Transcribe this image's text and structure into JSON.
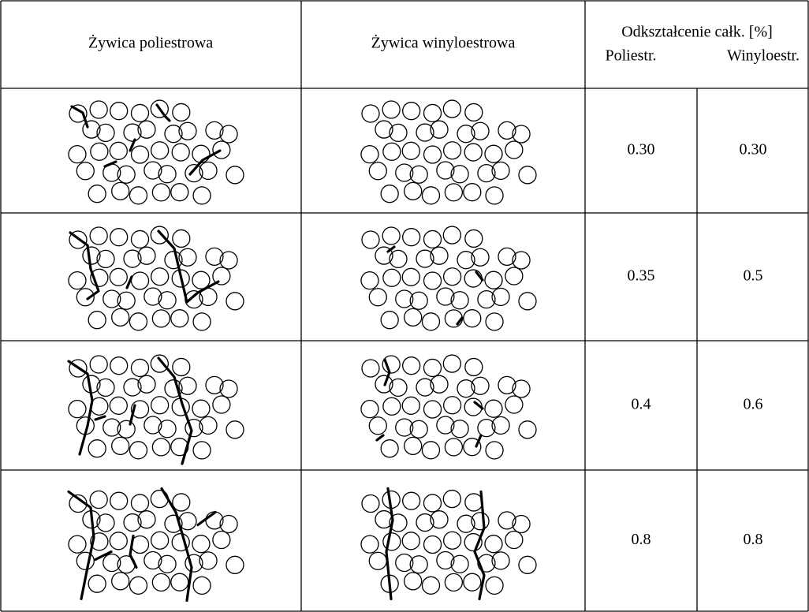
{
  "table": {
    "headers": [
      "Żywica poliestrowa",
      "Żywica winyloestrowa"
    ],
    "strain_header": "Odkształcenie całk. [%]",
    "subheaders": [
      "Poliestr.",
      "Winyloestr."
    ],
    "rows": [
      [
        "0.30",
        "0.30"
      ],
      [
        "0.35",
        "0.5"
      ],
      [
        "0.4",
        "0.6"
      ],
      [
        "0.8",
        "0.8"
      ]
    ]
  }
}
